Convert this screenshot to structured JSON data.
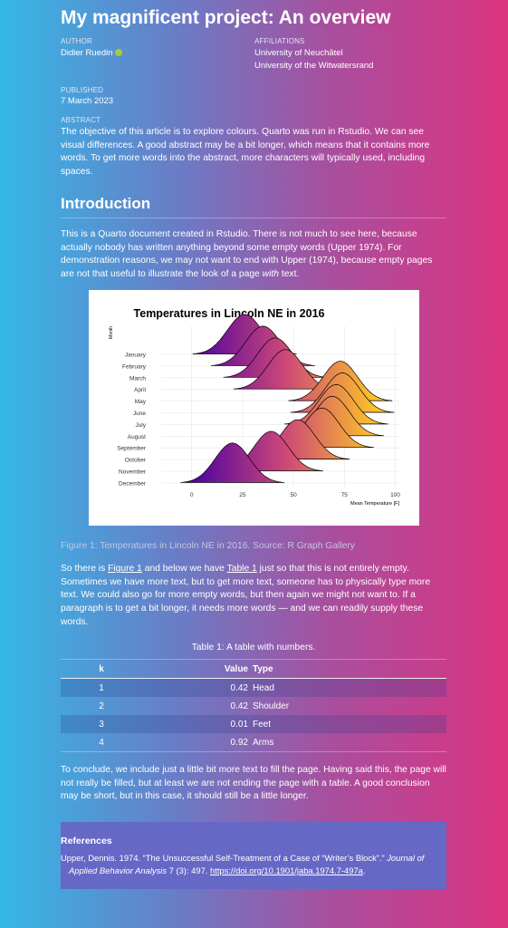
{
  "header": {
    "title": "My magnificent project: An overview",
    "author_label": "AUTHOR",
    "author": "Didier Ruedin",
    "affiliations_label": "AFFILIATIONS",
    "affiliations": [
      "University of Neuchâtel",
      "University of the Witwatersrand"
    ],
    "published_label": "PUBLISHED",
    "published": "7 March 2023",
    "abstract_label": "ABSTRACT",
    "abstract": "The objective of this article is to explore colours. Quarto was run in Rstudio. We can see visual differences. A good abstract may be a bit longer, which means that it contains more words. To get more words into the abstract, more characters will typically used, including spaces."
  },
  "section": {
    "heading": "Introduction",
    "paragraph1": [
      "This is a Quarto document created in Rstudio. There is not much to see here, because actually nobody has written anything beyond some empty words (Upper 1974). For demonstration reasons, we may not want to end with Upper (1974), because empty pages are not that useful to illustrate the look of a page ",
      "with",
      " text."
    ],
    "figure": {
      "caption": "Figure 1: Temperatures in Lincoln NE in 2016. Source: R Graph Gallery",
      "chart_data": {
        "type": "ridgeline",
        "title": "Temperatures in Lincoln NE in 2016",
        "y_label": "Month",
        "x_label": "Mean Temperature [F]",
        "categories": [
          "January",
          "February",
          "March",
          "April",
          "May",
          "June",
          "July",
          "August",
          "September",
          "October",
          "November",
          "December"
        ],
        "values": [
          26,
          35,
          41,
          46,
          73,
          74,
          71,
          69,
          64,
          52,
          39,
          20
        ],
        "xlim": [
          -15,
          102
        ],
        "xticks": [
          0,
          25,
          50,
          75,
          100
        ],
        "grid": true,
        "colormap": [
          "#4c02a1",
          "#cc4778",
          "#fdc527"
        ]
      }
    },
    "paragraph2": [
      "So there is ",
      "Figure 1",
      " and below we have ",
      "Table 1",
      " just so that this is not entirely empty. Sometimes we have more text, but to get more text, someone has to physically type more text. We could also go for more empty words, but then again we might not want to. If a paragraph is to get a bit longer, it needs more words — and we can readily supply these words."
    ],
    "table": {
      "caption": "Table 1: A table with numbers.",
      "header": [
        "k",
        "Value",
        "Type"
      ],
      "rows": [
        [
          "1",
          "0.42",
          "Head"
        ],
        [
          "2",
          "0.42",
          "Shoulder"
        ],
        [
          "3",
          "0.01",
          "Feet"
        ],
        [
          "4",
          "0.92",
          "Arms"
        ]
      ]
    },
    "paragraph3": "To conclude, we include just a little bit more text to fill the page. Having said this, the page will not really be filled, but at least we are not ending the page with a table. A good conclusion may be short, but in this case, it should still be a little longer."
  },
  "references": {
    "heading": "References",
    "entry": [
      "Upper, Dennis. 1974. “The Unsuccessful Self-Treatment of a Case of “Writer’s Block”.” ",
      "Journal of Applied Behavior Analysis",
      " 7 (3): 497. ",
      "https://doi.org/10.1901/jaba.1974.7-497a",
      "."
    ]
  }
}
